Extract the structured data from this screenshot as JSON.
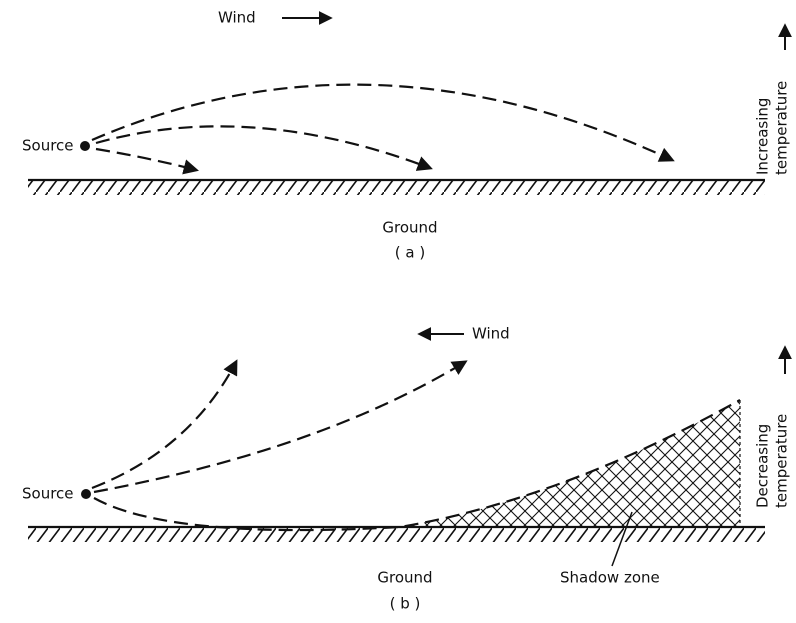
{
  "panel_a": {
    "wind": "Wind",
    "source": "Source",
    "temperature": [
      "Increasing",
      "temperature"
    ],
    "ground": "Ground",
    "label": "( a )"
  },
  "panel_b": {
    "wind": "Wind",
    "source": "Source",
    "temperature": [
      "Decreasing",
      "temperature"
    ],
    "ground": "Ground",
    "shadow": "Shadow zone",
    "label": "( b )"
  }
}
